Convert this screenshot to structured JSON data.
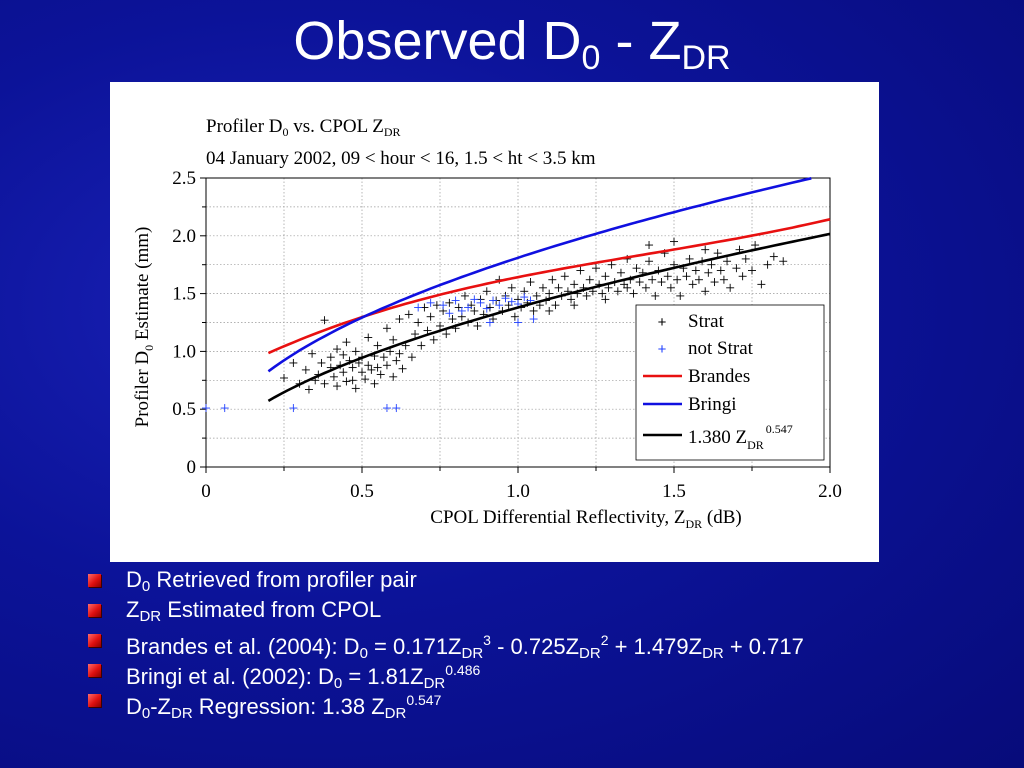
{
  "slide": {
    "title_main": "Observed D",
    "title_sub0": "0",
    "title_mid": " - Z",
    "title_sub1": "DR"
  },
  "colors": {
    "background": "#0c1399",
    "strat": "#000000",
    "not_strat": "#2040ff",
    "brandes": "#e81010",
    "bringi": "#1010e0",
    "regression": "#000000",
    "bullet_marker": "#e01010"
  },
  "chart_data": {
    "type": "scatter",
    "title_line1_a": "Profiler D",
    "title_line1_b": "0",
    "title_line1_c": " vs. CPOL Z",
    "title_line1_d": "DR",
    "title_line2": "04 January 2002, 09 < hour < 16, 1.5 < ht < 3.5 km",
    "xlabel_a": "CPOL Differential Reflectivity, Z",
    "xlabel_b": "DR",
    "xlabel_c": " (dB)",
    "ylabel_a": "Profiler D",
    "ylabel_b": "0",
    "ylabel_c": " Estimate (mm)",
    "xlim": [
      0,
      2.0
    ],
    "ylim": [
      0,
      2.5
    ],
    "x_ticks": [
      "0",
      "0.5",
      "1.0",
      "1.5",
      "2.0"
    ],
    "y_ticks": [
      "0",
      "0.5",
      "1.0",
      "1.5",
      "2.0",
      "2.5"
    ],
    "grid": true,
    "legend_position": "bottom-right",
    "legend": {
      "strat": "Strat",
      "not_strat": "not Strat",
      "brandes": "Brandes",
      "bringi": "Bringi",
      "regression_a": "1.380 Z",
      "regression_b": "DR",
      "regression_c": "0.547"
    },
    "series": [
      {
        "name": "Strat",
        "kind": "points",
        "marker": "+",
        "points": [
          [
            0.25,
            0.77
          ],
          [
            0.28,
            0.9
          ],
          [
            0.3,
            0.72
          ],
          [
            0.32,
            0.84
          ],
          [
            0.33,
            0.67
          ],
          [
            0.34,
            0.98
          ],
          [
            0.35,
            0.75
          ],
          [
            0.36,
            0.8
          ],
          [
            0.37,
            0.9
          ],
          [
            0.38,
            1.27
          ],
          [
            0.38,
            0.72
          ],
          [
            0.4,
            0.86
          ],
          [
            0.4,
            0.95
          ],
          [
            0.41,
            0.78
          ],
          [
            0.42,
            1.02
          ],
          [
            0.42,
            0.7
          ],
          [
            0.43,
            0.88
          ],
          [
            0.44,
            0.97
          ],
          [
            0.44,
            0.82
          ],
          [
            0.45,
            0.74
          ],
          [
            0.45,
            1.08
          ],
          [
            0.46,
            0.92
          ],
          [
            0.47,
            0.86
          ],
          [
            0.47,
            0.75
          ],
          [
            0.48,
            1.0
          ],
          [
            0.48,
            0.68
          ],
          [
            0.49,
            0.9
          ],
          [
            0.5,
            0.82
          ],
          [
            0.5,
            0.95
          ],
          [
            0.51,
            0.76
          ],
          [
            0.52,
            1.12
          ],
          [
            0.52,
            0.88
          ],
          [
            0.53,
            0.84
          ],
          [
            0.54,
            0.96
          ],
          [
            0.54,
            0.72
          ],
          [
            0.55,
            1.05
          ],
          [
            0.55,
            0.86
          ],
          [
            0.56,
            0.8
          ],
          [
            0.57,
            0.95
          ],
          [
            0.58,
            1.2
          ],
          [
            0.58,
            0.88
          ],
          [
            0.59,
            1.0
          ],
          [
            0.6,
            0.78
          ],
          [
            0.6,
            1.1
          ],
          [
            0.61,
            0.92
          ],
          [
            0.62,
            1.28
          ],
          [
            0.62,
            0.98
          ],
          [
            0.63,
            0.85
          ],
          [
            0.64,
            1.05
          ],
          [
            0.65,
            1.32
          ],
          [
            0.66,
            0.95
          ],
          [
            0.67,
            1.15
          ],
          [
            0.68,
            1.25
          ],
          [
            0.69,
            1.05
          ],
          [
            0.7,
            1.38
          ],
          [
            0.71,
            1.18
          ],
          [
            0.72,
            1.3
          ],
          [
            0.73,
            1.1
          ],
          [
            0.74,
            1.4
          ],
          [
            0.75,
            1.22
          ],
          [
            0.76,
            1.35
          ],
          [
            0.77,
            1.15
          ],
          [
            0.78,
            1.42
          ],
          [
            0.79,
            1.28
          ],
          [
            0.8,
            1.2
          ],
          [
            0.81,
            1.38
          ],
          [
            0.82,
            1.3
          ],
          [
            0.83,
            1.48
          ],
          [
            0.84,
            1.25
          ],
          [
            0.85,
            1.4
          ],
          [
            0.86,
            1.35
          ],
          [
            0.87,
            1.22
          ],
          [
            0.88,
            1.45
          ],
          [
            0.89,
            1.32
          ],
          [
            0.9,
            1.52
          ],
          [
            0.91,
            1.38
          ],
          [
            0.92,
            1.28
          ],
          [
            0.93,
            1.44
          ],
          [
            0.94,
            1.62
          ],
          [
            0.95,
            1.35
          ],
          [
            0.96,
            1.48
          ],
          [
            0.97,
            1.4
          ],
          [
            0.98,
            1.55
          ],
          [
            0.99,
            1.3
          ],
          [
            1.0,
            1.45
          ],
          [
            1.01,
            1.38
          ],
          [
            1.02,
            1.52
          ],
          [
            1.03,
            1.42
          ],
          [
            1.04,
            1.6
          ],
          [
            1.05,
            1.35
          ],
          [
            1.06,
            1.48
          ],
          [
            1.07,
            1.4
          ],
          [
            1.08,
            1.55
          ],
          [
            1.09,
            1.44
          ],
          [
            1.1,
            1.5
          ],
          [
            1.11,
            1.62
          ],
          [
            1.12,
            1.4
          ],
          [
            1.13,
            1.55
          ],
          [
            1.14,
            1.48
          ],
          [
            1.15,
            1.65
          ],
          [
            1.16,
            1.52
          ],
          [
            1.17,
            1.45
          ],
          [
            1.18,
            1.58
          ],
          [
            1.19,
            1.5
          ],
          [
            1.2,
            1.7
          ],
          [
            1.21,
            1.55
          ],
          [
            1.22,
            1.48
          ],
          [
            1.23,
            1.62
          ],
          [
            1.24,
            1.52
          ],
          [
            1.25,
            1.72
          ],
          [
            1.26,
            1.58
          ],
          [
            1.27,
            1.5
          ],
          [
            1.28,
            1.65
          ],
          [
            1.29,
            1.55
          ],
          [
            1.3,
            1.75
          ],
          [
            1.31,
            1.6
          ],
          [
            1.32,
            1.52
          ],
          [
            1.33,
            1.68
          ],
          [
            1.34,
            1.58
          ],
          [
            1.35,
            1.8
          ],
          [
            1.36,
            1.62
          ],
          [
            1.37,
            1.5
          ],
          [
            1.38,
            1.72
          ],
          [
            1.39,
            1.6
          ],
          [
            1.4,
            1.68
          ],
          [
            1.41,
            1.55
          ],
          [
            1.42,
            1.78
          ],
          [
            1.43,
            1.62
          ],
          [
            1.44,
            1.48
          ],
          [
            1.45,
            1.7
          ],
          [
            1.46,
            1.6
          ],
          [
            1.47,
            1.85
          ],
          [
            1.48,
            1.65
          ],
          [
            1.49,
            1.55
          ],
          [
            1.5,
            1.75
          ],
          [
            1.51,
            1.62
          ],
          [
            1.52,
            1.48
          ],
          [
            1.53,
            1.72
          ],
          [
            1.54,
            1.65
          ],
          [
            1.55,
            1.8
          ],
          [
            1.56,
            1.58
          ],
          [
            1.57,
            1.7
          ],
          [
            1.58,
            1.62
          ],
          [
            1.59,
            1.78
          ],
          [
            1.6,
            1.52
          ],
          [
            1.61,
            1.68
          ],
          [
            1.62,
            1.75
          ],
          [
            1.63,
            1.6
          ],
          [
            1.64,
            1.85
          ],
          [
            1.65,
            1.7
          ],
          [
            1.66,
            1.62
          ],
          [
            1.67,
            1.78
          ],
          [
            1.68,
            1.55
          ],
          [
            1.7,
            1.72
          ],
          [
            1.71,
            1.88
          ],
          [
            1.72,
            1.65
          ],
          [
            1.73,
            1.8
          ],
          [
            1.75,
            1.7
          ],
          [
            1.76,
            1.92
          ],
          [
            1.78,
            1.58
          ],
          [
            1.8,
            1.75
          ],
          [
            1.82,
            1.82
          ],
          [
            1.85,
            1.78
          ],
          [
            1.42,
            1.92
          ],
          [
            1.5,
            1.95
          ],
          [
            1.6,
            1.88
          ],
          [
            1.28,
            1.45
          ],
          [
            1.35,
            1.55
          ],
          [
            1.18,
            1.4
          ],
          [
            1.1,
            1.35
          ]
        ]
      },
      {
        "name": "not Strat",
        "kind": "points",
        "marker": "+",
        "points": [
          [
            0.0,
            0.51
          ],
          [
            0.06,
            0.51
          ],
          [
            0.28,
            0.51
          ],
          [
            0.58,
            0.51
          ],
          [
            0.61,
            0.51
          ],
          [
            0.68,
            1.38
          ],
          [
            0.72,
            1.42
          ],
          [
            0.76,
            1.4
          ],
          [
            0.8,
            1.44
          ],
          [
            0.84,
            1.38
          ],
          [
            0.86,
            1.45
          ],
          [
            0.88,
            1.42
          ],
          [
            0.9,
            1.37
          ],
          [
            0.92,
            1.44
          ],
          [
            0.94,
            1.4
          ],
          [
            0.96,
            1.46
          ],
          [
            0.98,
            1.43
          ],
          [
            1.0,
            1.41
          ],
          [
            1.02,
            1.47
          ],
          [
            1.04,
            1.44
          ],
          [
            0.91,
            1.25
          ],
          [
            1.0,
            1.25
          ],
          [
            1.05,
            1.28
          ],
          [
            0.82,
            1.35
          ],
          [
            0.78,
            1.33
          ]
        ]
      },
      {
        "name": "Brandes",
        "kind": "curve"
      },
      {
        "name": "Bringi",
        "kind": "curve"
      },
      {
        "name": "1.380 ZDR0.547",
        "kind": "curve"
      }
    ]
  },
  "bullets": [
    {
      "a": "D",
      "b": "0",
      "c": " Retrieved from profiler pair"
    },
    {
      "a": "Z",
      "b": "DR",
      "c": " Estimated from CPOL"
    },
    {
      "a": "Brandes et al. (2004): D",
      "b": "0",
      "c": " = 0.171Z",
      "d": "DR",
      "e": "3",
      "f": " - 0.725Z",
      "g": "DR",
      "h": "2",
      "i": " + 1.479Z",
      "j": "DR",
      "k": " + 0.717"
    },
    {
      "a": "Bringi et al. (2002): D",
      "b": "0",
      "c": " = 1.81Z",
      "d": "DR",
      "e": "0.486"
    },
    {
      "a": "D",
      "b": "0",
      "c": "-Z",
      "d": "DR",
      "e": " Regression: 1.38 Z",
      "f": "DR",
      "g": "0.547"
    }
  ]
}
